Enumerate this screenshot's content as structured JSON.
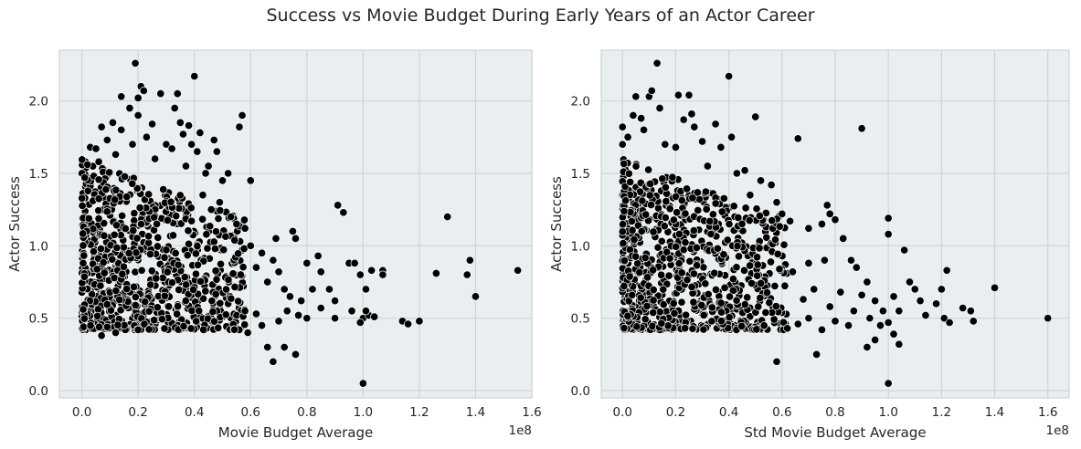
{
  "suptitle": "Success vs Movie Budget During Early Years of an Actor Career",
  "chart_data": [
    {
      "type": "scatter",
      "xlabel": "Movie Budget  Average",
      "ylabel": "Actor Success",
      "x_offset_label": "1e8",
      "xlim": [
        -0.08,
        1.6
      ],
      "ylim": [
        -0.05,
        2.35
      ],
      "xticks": [
        "0.0",
        "0.2",
        "0.4",
        "0.6",
        "0.8",
        "1.0",
        "1.2",
        "1.4",
        "1.6"
      ],
      "yticks": [
        "0.0",
        "0.5",
        "1.0",
        "1.5",
        "2.0"
      ],
      "grid": true,
      "marker_color": "#000000",
      "background": "#e9eff0",
      "points": [
        [
          0.0,
          1.5
        ],
        [
          0.01,
          1.47
        ],
        [
          0.02,
          1.56
        ],
        [
          0.03,
          1.68
        ],
        [
          0.05,
          1.67
        ],
        [
          0.06,
          1.58
        ],
        [
          0.07,
          1.82
        ],
        [
          0.09,
          1.73
        ],
        [
          0.11,
          1.85
        ],
        [
          0.12,
          1.63
        ],
        [
          0.14,
          1.8
        ],
        [
          0.14,
          2.03
        ],
        [
          0.17,
          1.95
        ],
        [
          0.18,
          1.7
        ],
        [
          0.19,
          2.26
        ],
        [
          0.2,
          2.02
        ],
        [
          0.2,
          1.9
        ],
        [
          0.21,
          2.1
        ],
        [
          0.22,
          2.07
        ],
        [
          0.23,
          1.75
        ],
        [
          0.25,
          1.84
        ],
        [
          0.26,
          1.6
        ],
        [
          0.28,
          2.05
        ],
        [
          0.3,
          1.7
        ],
        [
          0.32,
          1.67
        ],
        [
          0.33,
          1.95
        ],
        [
          0.34,
          2.05
        ],
        [
          0.35,
          1.85
        ],
        [
          0.36,
          1.77
        ],
        [
          0.37,
          1.55
        ],
        [
          0.38,
          1.83
        ],
        [
          0.39,
          1.7
        ],
        [
          0.4,
          2.17
        ],
        [
          0.41,
          1.65
        ],
        [
          0.42,
          1.78
        ],
        [
          0.44,
          1.5
        ],
        [
          0.45,
          1.55
        ],
        [
          0.47,
          1.73
        ],
        [
          0.48,
          1.65
        ],
        [
          0.5,
          1.45
        ],
        [
          0.52,
          1.5
        ],
        [
          0.56,
          1.82
        ],
        [
          0.57,
          1.9
        ],
        [
          0.6,
          1.45
        ],
        [
          0.58,
          1.12
        ],
        [
          0.55,
          1.15
        ],
        [
          0.53,
          1.2
        ],
        [
          0.49,
          1.3
        ],
        [
          0.46,
          1.25
        ],
        [
          0.43,
          1.35
        ],
        [
          0.6,
          1.0
        ],
        [
          0.62,
          0.85
        ],
        [
          0.64,
          0.95
        ],
        [
          0.66,
          0.75
        ],
        [
          0.68,
          0.9
        ],
        [
          0.69,
          1.05
        ],
        [
          0.7,
          0.82
        ],
        [
          0.72,
          0.7
        ],
        [
          0.74,
          0.65
        ],
        [
          0.75,
          1.1
        ],
        [
          0.76,
          1.05
        ],
        [
          0.78,
          0.62
        ],
        [
          0.8,
          0.88
        ],
        [
          0.82,
          0.7
        ],
        [
          0.84,
          0.93
        ],
        [
          0.85,
          0.82
        ],
        [
          0.88,
          0.7
        ],
        [
          0.9,
          0.62
        ],
        [
          0.91,
          1.28
        ],
        [
          0.93,
          1.23
        ],
        [
          0.95,
          0.88
        ],
        [
          0.97,
          0.88
        ],
        [
          0.99,
          0.8
        ],
        [
          1.01,
          0.7
        ],
        [
          1.03,
          0.83
        ],
        [
          1.07,
          0.83
        ],
        [
          1.07,
          0.8
        ],
        [
          1.14,
          0.48
        ],
        [
          1.16,
          0.46
        ],
        [
          1.2,
          0.48
        ],
        [
          1.26,
          0.81
        ],
        [
          1.3,
          1.2
        ],
        [
          1.37,
          0.8
        ],
        [
          1.38,
          0.9
        ],
        [
          1.4,
          0.65
        ],
        [
          1.55,
          0.83
        ],
        [
          1.0,
          0.5
        ],
        [
          1.02,
          0.52
        ],
        [
          1.04,
          0.51
        ],
        [
          0.99,
          0.47
        ],
        [
          1.01,
          0.55
        ],
        [
          1.0,
          0.05
        ],
        [
          0.76,
          0.25
        ],
        [
          0.72,
          0.3
        ],
        [
          0.68,
          0.2
        ],
        [
          0.66,
          0.3
        ],
        [
          0.64,
          0.45
        ],
        [
          0.62,
          0.53
        ],
        [
          0.59,
          0.4
        ],
        [
          0.58,
          0.55
        ],
        [
          0.85,
          0.57
        ],
        [
          0.9,
          0.5
        ],
        [
          0.96,
          0.55
        ],
        [
          0.8,
          0.5
        ],
        [
          0.77,
          0.52
        ],
        [
          0.73,
          0.55
        ],
        [
          0.7,
          0.48
        ],
        [
          0.07,
          0.38
        ],
        [
          0.12,
          0.4
        ],
        [
          0.2,
          0.42
        ]
      ],
      "cloud": {
        "x_min": 0.0,
        "x_max": 0.58,
        "y_min": 0.42,
        "y_max": 1.6,
        "count": 850,
        "seed": 11
      }
    },
    {
      "type": "scatter",
      "xlabel": "Std Movie Budget Average",
      "ylabel": "Actor Success",
      "x_offset_label": "1e8",
      "xlim": [
        -0.08,
        1.68
      ],
      "ylim": [
        -0.05,
        2.35
      ],
      "xticks": [
        "0.0",
        "0.2",
        "0.4",
        "0.6",
        "0.8",
        "1.0",
        "1.2",
        "1.4",
        "1.6"
      ],
      "yticks": [
        "0.0",
        "0.5",
        "1.0",
        "1.5",
        "2.0"
      ],
      "grid": true,
      "marker_color": "#000000",
      "background": "#e9eff0",
      "points": [
        [
          0.0,
          1.7
        ],
        [
          0.0,
          1.82
        ],
        [
          0.02,
          1.75
        ],
        [
          0.04,
          1.9
        ],
        [
          0.05,
          2.03
        ],
        [
          0.07,
          1.88
        ],
        [
          0.08,
          1.8
        ],
        [
          0.1,
          2.03
        ],
        [
          0.11,
          2.07
        ],
        [
          0.13,
          2.26
        ],
        [
          0.14,
          1.95
        ],
        [
          0.16,
          1.7
        ],
        [
          0.2,
          1.68
        ],
        [
          0.21,
          2.04
        ],
        [
          0.23,
          1.87
        ],
        [
          0.25,
          2.04
        ],
        [
          0.26,
          1.91
        ],
        [
          0.27,
          1.82
        ],
        [
          0.3,
          1.72
        ],
        [
          0.32,
          1.55
        ],
        [
          0.35,
          1.84
        ],
        [
          0.37,
          1.68
        ],
        [
          0.4,
          2.17
        ],
        [
          0.41,
          1.75
        ],
        [
          0.43,
          1.5
        ],
        [
          0.46,
          1.52
        ],
        [
          0.48,
          1.35
        ],
        [
          0.5,
          1.89
        ],
        [
          0.52,
          1.45
        ],
        [
          0.56,
          1.42
        ],
        [
          0.58,
          1.3
        ],
        [
          0.6,
          1.22
        ],
        [
          0.63,
          1.17
        ],
        [
          0.66,
          1.74
        ],
        [
          0.7,
          1.12
        ],
        [
          0.75,
          1.15
        ],
        [
          0.77,
          1.28
        ],
        [
          0.78,
          1.22
        ],
        [
          0.8,
          1.18
        ],
        [
          0.83,
          1.05
        ],
        [
          0.86,
          0.9
        ],
        [
          0.88,
          0.85
        ],
        [
          0.9,
          1.81
        ],
        [
          0.92,
          0.75
        ],
        [
          0.95,
          0.62
        ],
        [
          0.98,
          0.55
        ],
        [
          1.0,
          1.19
        ],
        [
          1.0,
          1.08
        ],
        [
          1.02,
          0.65
        ],
        [
          1.04,
          0.55
        ],
        [
          1.06,
          0.97
        ],
        [
          1.08,
          0.75
        ],
        [
          1.1,
          0.7
        ],
        [
          1.12,
          0.62
        ],
        [
          1.14,
          0.52
        ],
        [
          1.18,
          0.6
        ],
        [
          1.2,
          0.7
        ],
        [
          1.21,
          0.5
        ],
        [
          1.22,
          0.83
        ],
        [
          1.23,
          0.47
        ],
        [
          1.28,
          0.57
        ],
        [
          1.31,
          0.55
        ],
        [
          1.32,
          0.48
        ],
        [
          1.4,
          0.71
        ],
        [
          1.6,
          0.5
        ],
        [
          1.0,
          0.05
        ],
        [
          0.73,
          0.25
        ],
        [
          0.58,
          0.2
        ],
        [
          0.92,
          0.3
        ],
        [
          0.95,
          0.35
        ],
        [
          1.02,
          0.39
        ],
        [
          1.04,
          0.32
        ],
        [
          1.0,
          0.47
        ],
        [
          0.97,
          0.45
        ],
        [
          0.85,
          0.45
        ],
        [
          0.8,
          0.48
        ],
        [
          0.75,
          0.42
        ],
        [
          0.7,
          0.5
        ],
        [
          0.66,
          0.46
        ],
        [
          0.62,
          0.43
        ],
        [
          0.68,
          0.63
        ],
        [
          0.72,
          0.7
        ],
        [
          0.78,
          0.58
        ],
        [
          0.82,
          0.68
        ],
        [
          0.87,
          0.55
        ],
        [
          0.9,
          0.66
        ],
        [
          0.93,
          0.5
        ],
        [
          0.64,
          0.82
        ],
        [
          0.7,
          0.88
        ],
        [
          0.76,
          0.9
        ]
      ],
      "cloud": {
        "x_min": 0.0,
        "x_max": 0.62,
        "y_min": 0.42,
        "y_max": 1.6,
        "count": 850,
        "seed": 23
      }
    }
  ]
}
